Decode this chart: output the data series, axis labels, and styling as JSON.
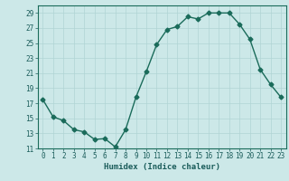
{
  "x": [
    0,
    1,
    2,
    3,
    4,
    5,
    6,
    7,
    8,
    9,
    10,
    11,
    12,
    13,
    14,
    15,
    16,
    17,
    18,
    19,
    20,
    21,
    22,
    23
  ],
  "y": [
    17.5,
    15.2,
    14.7,
    13.5,
    13.2,
    12.2,
    12.3,
    11.2,
    13.5,
    17.8,
    21.2,
    24.8,
    26.8,
    27.2,
    28.5,
    28.2,
    29.0,
    29.0,
    29.0,
    27.5,
    25.5,
    21.5,
    19.5,
    17.8
  ],
  "line_color": "#1a6b5a",
  "marker_color": "#1a6b5a",
  "bg_color": "#cce8e8",
  "grid_color": "#b0d4d4",
  "xlabel": "Humidex (Indice chaleur)",
  "ylim": [
    11,
    30
  ],
  "xlim": [
    -0.5,
    23.5
  ],
  "yticks": [
    11,
    13,
    15,
    17,
    19,
    21,
    23,
    25,
    27,
    29
  ],
  "xticks": [
    0,
    1,
    2,
    3,
    4,
    5,
    6,
    7,
    8,
    9,
    10,
    11,
    12,
    13,
    14,
    15,
    16,
    17,
    18,
    19,
    20,
    21,
    22,
    23
  ],
  "tick_color": "#1a5c5a",
  "tick_fontsize": 5.5,
  "xlabel_fontsize": 6.5,
  "linewidth": 1.0,
  "markersize": 2.5
}
